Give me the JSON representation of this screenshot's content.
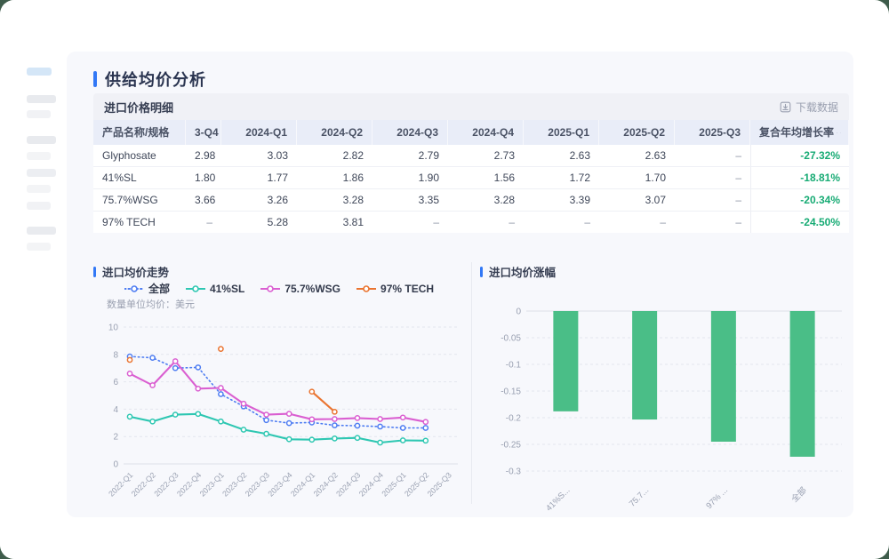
{
  "accent_color": "#3278f6",
  "window": {
    "dot_colors": [
      "#ee5448",
      "#f6a12d",
      "#35ba6c"
    ]
  },
  "page_title": "供给均价分析",
  "table": {
    "section_title": "进口价格明细",
    "download_label": "下载数据",
    "columns": [
      "产品名称/规格",
      "3-Q4",
      "2024-Q1",
      "2024-Q2",
      "2024-Q3",
      "2024-Q4",
      "2025-Q1",
      "2025-Q2",
      "2025-Q3",
      "复合年均增长率"
    ],
    "cagr_color": "#17ab74",
    "rows": [
      {
        "name": "Glyphosate",
        "values": [
          "2.98",
          "3.03",
          "2.82",
          "2.79",
          "2.73",
          "2.63",
          "2.63",
          "–"
        ],
        "cagr": "-27.32%"
      },
      {
        "name": "41%SL",
        "values": [
          "1.80",
          "1.77",
          "1.86",
          "1.90",
          "1.56",
          "1.72",
          "1.70",
          "–"
        ],
        "cagr": "-18.81%"
      },
      {
        "name": "75.7%WSG",
        "values": [
          "3.66",
          "3.26",
          "3.28",
          "3.35",
          "3.28",
          "3.39",
          "3.07",
          "–"
        ],
        "cagr": "-20.34%"
      },
      {
        "name": "97% TECH",
        "values": [
          "–",
          "5.28",
          "3.81",
          "–",
          "–",
          "–",
          "–",
          "–"
        ],
        "cagr": "-24.50%"
      }
    ]
  },
  "chart_data": [
    {
      "type": "line",
      "title": "进口均价走势",
      "subtitle": "数量单位均价：美元",
      "legend_position": "top",
      "grid": true,
      "ylim": [
        0,
        10
      ],
      "yticks": [
        0,
        2,
        4,
        6,
        8,
        10
      ],
      "x": [
        "2022-Q1",
        "2022-Q2",
        "2022-Q3",
        "2022-Q4",
        "2023-Q1",
        "2023-Q2",
        "2023-Q3",
        "2023-Q4",
        "2024-Q1",
        "2024-Q2",
        "2024-Q3",
        "2024-Q4",
        "2025-Q1",
        "2025-Q2",
        "2025-Q3"
      ],
      "series": [
        {
          "name": "全部",
          "color": "#4e7df2",
          "style": "dotted",
          "values": [
            7.85,
            7.75,
            7.0,
            7.05,
            5.1,
            4.2,
            3.2,
            2.98,
            3.03,
            2.82,
            2.79,
            2.73,
            2.63,
            2.63,
            null
          ]
        },
        {
          "name": "41%SL",
          "color": "#2ec7b2",
          "style": "solid",
          "values": [
            3.45,
            3.1,
            3.6,
            3.65,
            3.1,
            2.5,
            2.2,
            1.8,
            1.77,
            1.86,
            1.9,
            1.56,
            1.72,
            1.7,
            null
          ]
        },
        {
          "name": "75.7%WSG",
          "color": "#da5fd1",
          "style": "solid",
          "values": [
            6.6,
            5.75,
            7.5,
            5.5,
            5.55,
            4.4,
            3.6,
            3.66,
            3.26,
            3.28,
            3.35,
            3.28,
            3.39,
            3.07,
            null
          ]
        },
        {
          "name": "97% TECH",
          "color": "#ea7430",
          "style": "solid",
          "values": [
            7.6,
            null,
            null,
            null,
            8.4,
            null,
            null,
            null,
            5.28,
            3.81,
            null,
            null,
            null,
            null,
            null
          ]
        }
      ]
    },
    {
      "type": "bar",
      "title": "进口均价涨幅",
      "categories": [
        "41%S...",
        "75.7...",
        "97% ...",
        "全部"
      ],
      "values": [
        -0.1881,
        -0.2034,
        -0.245,
        -0.2732
      ],
      "bar_color": "#4abe87",
      "grid": true,
      "ylim": [
        -0.3,
        0
      ],
      "yticks": [
        0,
        -0.05,
        -0.1,
        -0.15,
        -0.2,
        -0.25,
        -0.3
      ]
    }
  ]
}
